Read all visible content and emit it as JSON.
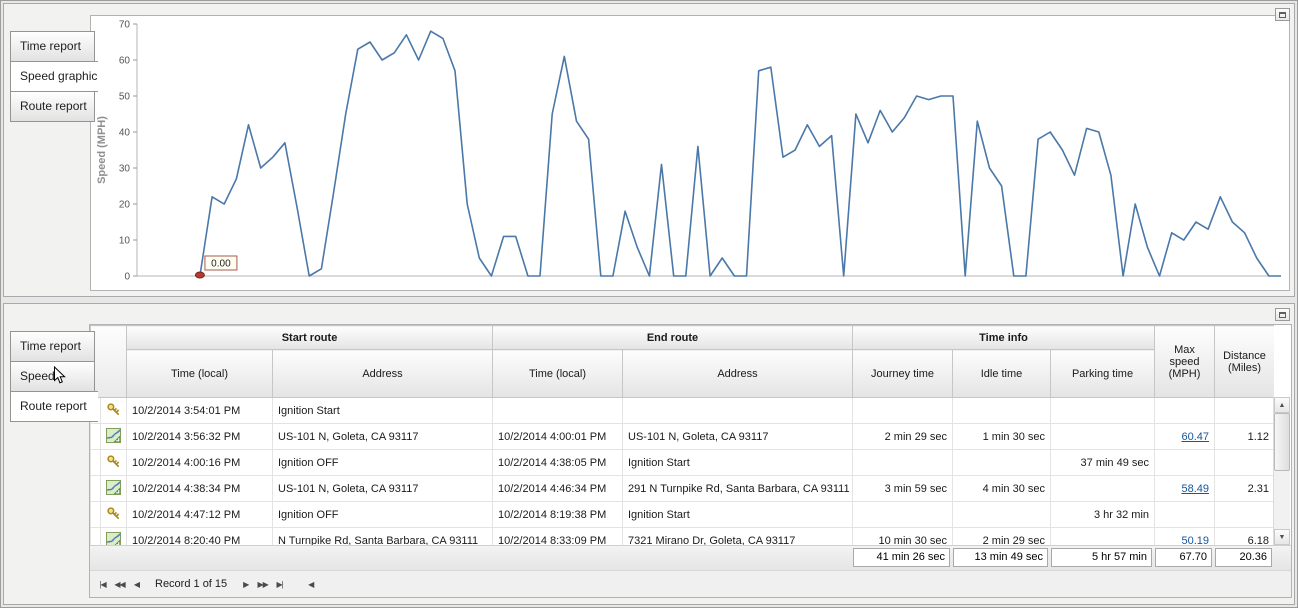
{
  "colors": {
    "accent_link": "#15569c",
    "chart_line": "#4a78a8",
    "marker_red": "#b23b30"
  },
  "panels": {
    "top": {
      "tabs": [
        {
          "label": "Time report"
        },
        {
          "label": "Speed graphic"
        },
        {
          "label": "Route report"
        }
      ],
      "active_tab": "Speed graphic"
    },
    "bottom": {
      "tabs": [
        {
          "label": "Time report"
        },
        {
          "label": "Speed graphic"
        },
        {
          "label": "Route report"
        }
      ],
      "active_tab": "Route report"
    }
  },
  "chart_data": {
    "type": "line",
    "title": "",
    "xlabel": "",
    "ylabel": "Speed (MPH)",
    "ylim": [
      0,
      70
    ],
    "yticks": [
      0,
      10,
      20,
      30,
      40,
      50,
      60,
      70
    ],
    "x_axis_labels_visible": false,
    "grid": false,
    "line_color": "#4a78a8",
    "start_offset_fraction": 0.055,
    "values": [
      0,
      22,
      20,
      27,
      42,
      30,
      33,
      37,
      19,
      0,
      2,
      23,
      45,
      63,
      65,
      60,
      62,
      67,
      60,
      68,
      66,
      57,
      20,
      5,
      0,
      11,
      11,
      0,
      0,
      45,
      61,
      43,
      38,
      0,
      0,
      18,
      8,
      0,
      31,
      0,
      0,
      36,
      0,
      5,
      0,
      0,
      57,
      58,
      33,
      35,
      42,
      36,
      39,
      0,
      45,
      37,
      46,
      40,
      44,
      50,
      49,
      50,
      50,
      0,
      43,
      30,
      25,
      0,
      0,
      38,
      40,
      35,
      28,
      41,
      40,
      28,
      0,
      20,
      8,
      0,
      12,
      10,
      15,
      13,
      22,
      15,
      12,
      5,
      0,
      0
    ],
    "annotation": {
      "index": 0,
      "text": "0.00",
      "marker_color": "#b23b30"
    }
  },
  "table": {
    "groups": [
      {
        "label": "Start route",
        "span": 2
      },
      {
        "label": "End route",
        "span": 2
      },
      {
        "label": "Time info",
        "span": 3
      }
    ],
    "columns": [
      "Time (local)",
      "Address",
      "Time (local)",
      "Address",
      "Journey time",
      "Idle time",
      "Parking time"
    ],
    "max_speed_header": "Max speed\n(MPH)",
    "distance_header": "Distance\n(Miles)",
    "rows": [
      {
        "icon": "key",
        "start_time": "10/2/2014 3:54:01 PM",
        "start_address": "Ignition Start",
        "end_time": "",
        "end_address": "",
        "journey": "",
        "idle": "",
        "parking": "",
        "max_speed": "",
        "max_speed_link": false,
        "distance": ""
      },
      {
        "icon": "route",
        "start_time": "10/2/2014 3:56:32 PM",
        "start_address": "US-101 N, Goleta, CA 93117",
        "end_time": "10/2/2014 4:00:01 PM",
        "end_address": "US-101 N, Goleta, CA 93117",
        "journey": "2 min 29 sec",
        "idle": "1 min 30 sec",
        "parking": "",
        "max_speed": "60.47",
        "max_speed_link": true,
        "distance": "1.12"
      },
      {
        "icon": "key",
        "start_time": "10/2/2014 4:00:16 PM",
        "start_address": "Ignition OFF",
        "end_time": "10/2/2014 4:38:05 PM",
        "end_address": "Ignition Start",
        "journey": "",
        "idle": "",
        "parking": "37 min 49 sec",
        "max_speed": "",
        "max_speed_link": false,
        "distance": ""
      },
      {
        "icon": "route",
        "start_time": "10/2/2014 4:38:34 PM",
        "start_address": "US-101 N, Goleta, CA 93117",
        "end_time": "10/2/2014 4:46:34 PM",
        "end_address": "291 N Turnpike Rd, Santa Barbara, CA 93111",
        "journey": "3 min 59 sec",
        "idle": "4 min 30 sec",
        "parking": "",
        "max_speed": "58.49",
        "max_speed_link": true,
        "distance": "2.31"
      },
      {
        "icon": "key",
        "start_time": "10/2/2014 4:47:12 PM",
        "start_address": "Ignition OFF",
        "end_time": "10/2/2014 8:19:38 PM",
        "end_address": "Ignition Start",
        "journey": "",
        "idle": "",
        "parking": "3 hr 32 min",
        "max_speed": "",
        "max_speed_link": false,
        "distance": ""
      },
      {
        "icon": "route",
        "start_time": "10/2/2014 8:20:40 PM",
        "start_address": "N Turnpike Rd, Santa Barbara, CA 93111",
        "end_time": "10/2/2014 8:33:09 PM",
        "end_address": "7321 Mirano Dr, Goleta, CA 93117",
        "journey": "10 min 30 sec",
        "idle": "2 min 29 sec",
        "parking": "",
        "max_speed": "50.19",
        "max_speed_link": true,
        "distance": "6.18"
      }
    ],
    "summary": {
      "journey": "41 min 26 sec",
      "idle": "13 min 49 sec",
      "parking": "5 hr 57 min",
      "max_speed": "67.70",
      "distance": "20.36"
    },
    "pager": {
      "record_label": "Record 1 of 15",
      "buttons": {
        "first": "|◀",
        "prev_page": "◀◀",
        "prev": "◀",
        "next": "▶",
        "next_page": "▶▶",
        "last": "▶|",
        "hscroll_left": "◀"
      }
    },
    "scrollbar": {
      "up": "▲",
      "down": "▼"
    }
  }
}
